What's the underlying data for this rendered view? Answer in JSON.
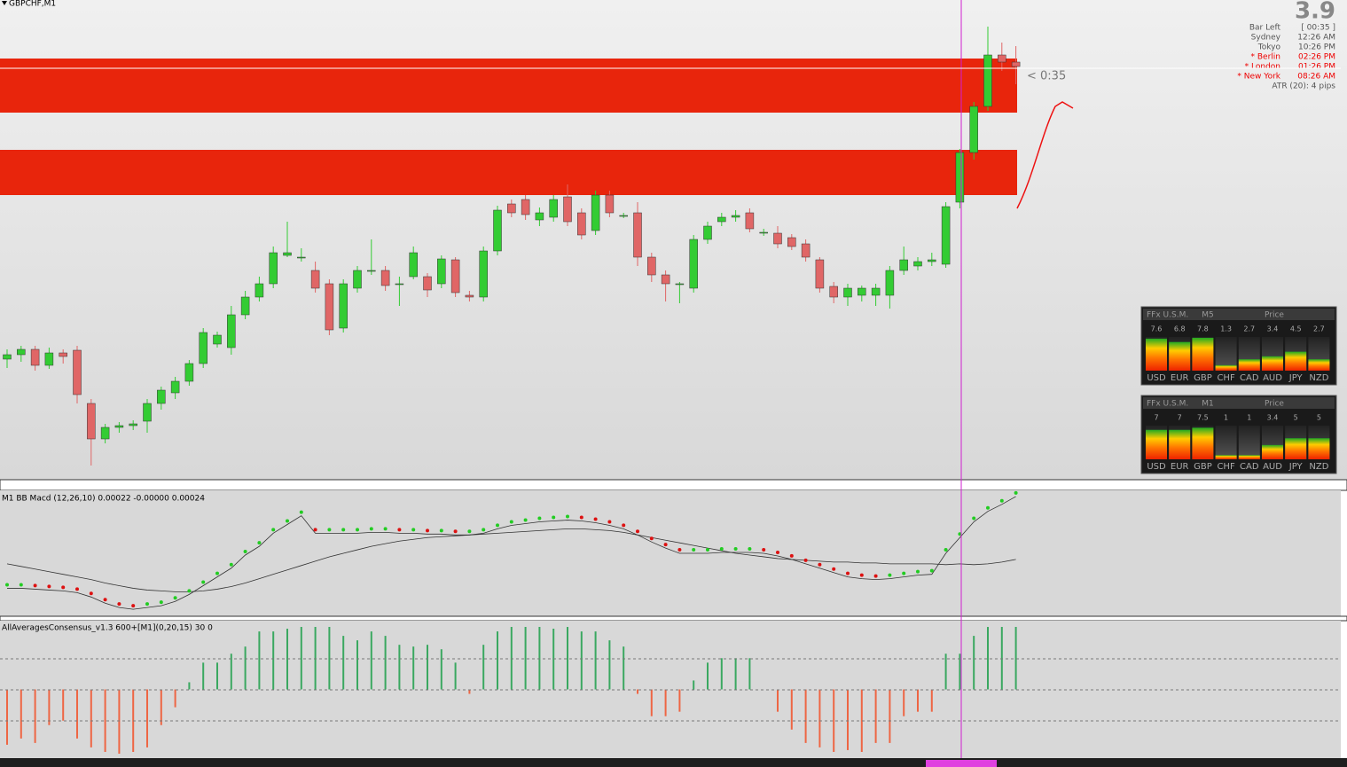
{
  "header": {
    "symbol": "GBPCHF,M1",
    "big_value": "3.9",
    "info": [
      [
        "Bar Left",
        "[ 00:35 ]"
      ],
      [
        "Sydney",
        "12:26 AM"
      ],
      [
        "Tokyo",
        "10:26 PM"
      ],
      [
        "* Berlin",
        "02:26 PM"
      ],
      [
        "* London",
        "01:26 PM"
      ],
      [
        "* New York",
        "08:26 AM"
      ]
    ],
    "atr": "ATR (20): 4 pips",
    "countdown": "< 0:35"
  },
  "main_chart": {
    "type": "candlestick",
    "ylim": [
      0,
      540
    ],
    "up_color": "#33cc33",
    "down_color": "#e06666",
    "zone_color": "#e8250c",
    "zones": [
      [
        474,
        413
      ],
      [
        371,
        320
      ]
    ],
    "candles": [
      [
        135,
        140,
        146,
        125
      ],
      [
        140,
        146,
        150,
        132
      ],
      [
        146,
        128,
        150,
        122
      ],
      [
        128,
        142,
        148,
        124
      ],
      [
        142,
        138,
        146,
        130
      ],
      [
        145,
        95,
        150,
        85
      ],
      [
        85,
        45,
        90,
        15
      ],
      [
        45,
        58,
        62,
        40
      ],
      [
        58,
        60,
        64,
        52
      ],
      [
        60,
        62,
        66,
        55
      ],
      [
        65,
        85,
        90,
        52
      ],
      [
        85,
        100,
        104,
        78
      ],
      [
        97,
        110,
        115,
        90
      ],
      [
        110,
        130,
        134,
        105
      ],
      [
        130,
        165,
        170,
        125
      ],
      [
        152,
        162,
        166,
        148
      ],
      [
        148,
        185,
        195,
        140
      ],
      [
        185,
        205,
        212,
        180
      ],
      [
        205,
        220,
        228,
        200
      ],
      [
        220,
        255,
        262,
        215
      ],
      [
        252,
        255,
        290,
        250
      ],
      [
        250,
        250,
        260,
        245
      ],
      [
        235,
        215,
        245,
        210
      ],
      [
        220,
        168,
        225,
        162
      ],
      [
        170,
        220,
        225,
        165
      ],
      [
        215,
        235,
        240,
        210
      ],
      [
        235,
        235,
        270,
        230
      ],
      [
        235,
        218,
        240,
        212
      ],
      [
        220,
        220,
        228,
        195
      ],
      [
        228,
        255,
        262,
        225
      ],
      [
        228,
        213,
        232,
        205
      ],
      [
        220,
        248,
        252,
        215
      ],
      [
        247,
        210,
        250,
        205
      ],
      [
        207,
        205,
        212,
        200
      ],
      [
        205,
        257,
        262,
        200
      ],
      [
        257,
        303,
        308,
        252
      ],
      [
        310,
        300,
        315,
        295
      ],
      [
        315,
        298,
        320,
        292
      ],
      [
        292,
        300,
        306,
        285
      ],
      [
        295,
        315,
        320,
        290
      ],
      [
        318,
        290,
        332,
        285
      ],
      [
        300,
        275,
        305,
        270
      ],
      [
        280,
        320,
        325,
        275
      ],
      [
        320,
        300,
        325,
        295
      ],
      [
        297,
        297,
        300,
        294
      ],
      [
        300,
        250,
        312,
        240
      ],
      [
        250,
        230,
        255,
        222
      ],
      [
        230,
        220,
        235,
        200
      ],
      [
        220,
        220,
        222,
        198
      ],
      [
        215,
        270,
        275,
        210
      ],
      [
        270,
        285,
        290,
        265
      ],
      [
        290,
        295,
        300,
        285
      ],
      [
        295,
        297,
        303,
        290
      ],
      [
        300,
        282,
        305,
        278
      ],
      [
        278,
        278,
        282,
        274
      ],
      [
        277,
        265,
        285,
        260
      ],
      [
        272,
        262,
        276,
        258
      ],
      [
        265,
        250,
        270,
        245
      ],
      [
        247,
        215,
        250,
        210
      ],
      [
        217,
        205,
        222,
        198
      ],
      [
        205,
        215,
        220,
        195
      ],
      [
        207,
        215,
        218,
        200
      ],
      [
        207,
        215,
        220,
        195
      ],
      [
        207,
        235,
        240,
        192
      ],
      [
        235,
        247,
        262,
        230
      ],
      [
        240,
        245,
        250,
        235
      ],
      [
        245,
        247,
        255,
        240
      ],
      [
        242,
        307,
        312,
        238
      ],
      [
        312,
        368,
        372,
        305
      ],
      [
        368,
        420,
        425,
        360
      ],
      [
        420,
        478,
        510,
        415
      ],
      [
        478,
        470,
        492,
        460
      ],
      [
        470,
        465,
        488,
        445
      ]
    ]
  },
  "macd": {
    "type": "line",
    "label": "M1 BB Macd (12,26,10) 0.00022 -0.00000 0.00024",
    "ylim": [
      0,
      142
    ],
    "main": [
      32,
      32,
      31,
      30,
      29,
      27,
      22,
      15,
      10,
      8,
      10,
      12,
      17,
      25,
      35,
      45,
      55,
      70,
      80,
      95,
      105,
      115,
      95,
      95,
      95,
      95,
      96,
      96,
      95,
      95,
      94,
      94,
      93,
      93,
      95,
      100,
      104,
      106,
      108,
      109,
      110,
      109,
      107,
      104,
      100,
      93,
      85,
      78,
      72,
      72,
      72,
      73,
      73,
      73,
      72,
      69,
      65,
      60,
      55,
      50,
      45,
      43,
      42,
      43,
      45,
      47,
      48,
      72,
      90,
      108,
      120,
      128,
      137
    ],
    "signal": [
      60,
      57,
      54,
      51,
      48,
      45,
      42,
      38,
      35,
      32,
      30,
      29,
      28,
      28,
      29,
      31,
      34,
      38,
      43,
      48,
      53,
      58,
      63,
      68,
      72,
      76,
      80,
      83,
      86,
      88,
      90,
      91,
      92,
      93,
      94,
      95,
      96,
      97,
      98,
      99,
      100,
      100,
      99,
      98,
      96,
      93,
      90,
      87,
      84,
      81,
      78,
      75,
      72,
      70,
      68,
      66,
      65,
      64,
      63,
      62,
      62,
      61,
      61,
      60,
      60,
      60,
      60,
      59,
      60,
      59,
      60,
      62,
      65
    ]
  },
  "consensus": {
    "type": "bar",
    "label": "AllAveragesConsensus_v1.3 600+[M1](0,20,15) 30 0",
    "ylim": [
      -77,
      77
    ],
    "values": [
      -62,
      -55,
      -60,
      -40,
      -35,
      -55,
      -65,
      -70,
      -72,
      -70,
      -65,
      -40,
      -20,
      8,
      30,
      30,
      40,
      48,
      65,
      65,
      68,
      70,
      70,
      70,
      60,
      55,
      65,
      60,
      50,
      48,
      50,
      45,
      30,
      -5,
      50,
      65,
      70,
      70,
      70,
      68,
      70,
      65,
      65,
      55,
      48,
      -5,
      -30,
      -30,
      -25,
      10,
      30,
      35,
      35,
      35,
      0,
      -25,
      -45,
      -60,
      -65,
      -70,
      -68,
      -70,
      -60,
      -60,
      -30,
      -25,
      -25,
      40,
      40,
      60,
      70,
      70,
      70
    ]
  },
  "strength_panels": [
    {
      "title": "FFx U.S.M.",
      "timeframe": "M5",
      "price": "Price",
      "ymax": 8,
      "currencies": [
        "USD",
        "EUR",
        "GBP",
        "CHF",
        "CAD",
        "AUD",
        "JPY",
        "NZD"
      ],
      "values": [
        7.6,
        6.8,
        7.8,
        1.3,
        2.7,
        3.4,
        4.5,
        2.7
      ]
    },
    {
      "title": "FFx U.S.M.",
      "timeframe": "M1",
      "price": "Price",
      "ymax": 8,
      "currencies": [
        "USD",
        "EUR",
        "GBP",
        "CHF",
        "CAD",
        "AUD",
        "JPY",
        "NZD"
      ],
      "values": [
        7.0,
        7.0,
        7.5,
        1.0,
        1.0,
        3.4,
        5.0,
        5.0
      ]
    }
  ]
}
